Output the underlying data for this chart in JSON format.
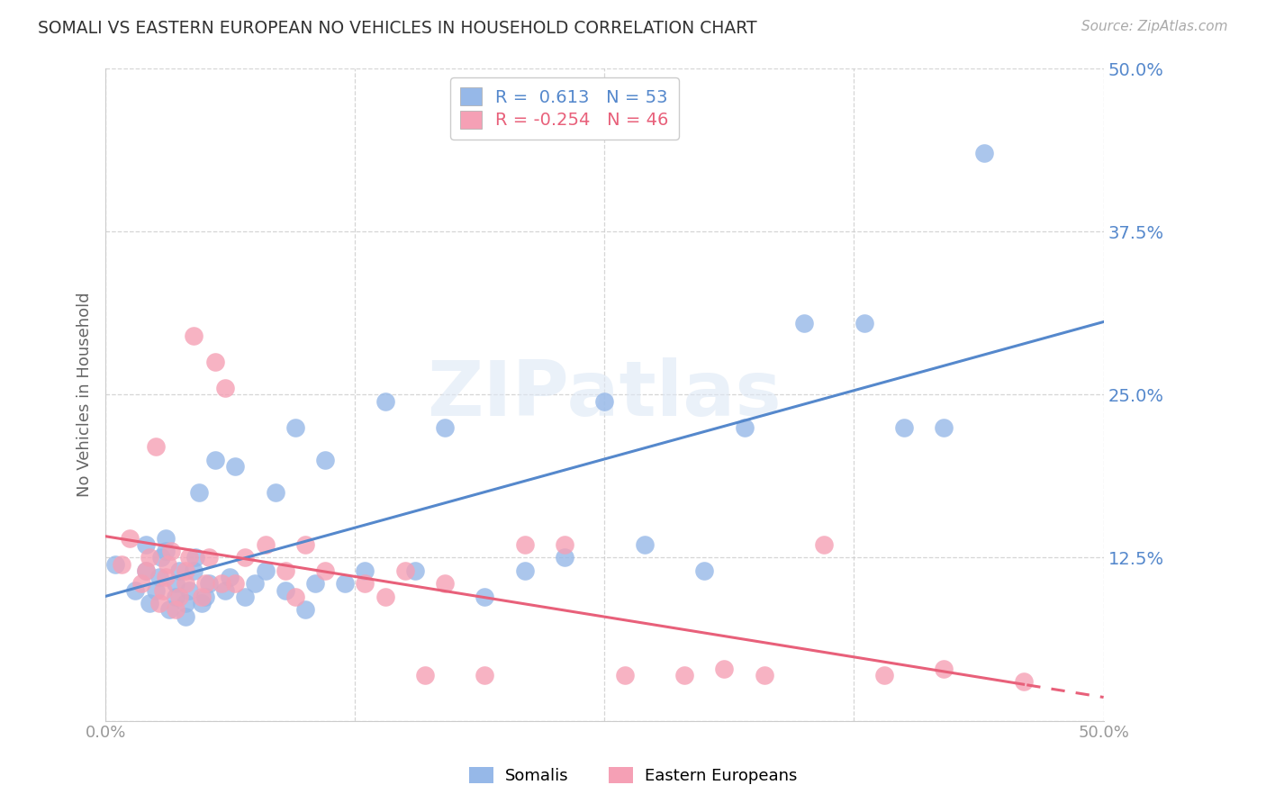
{
  "title": "SOMALI VS EASTERN EUROPEAN NO VEHICLES IN HOUSEHOLD CORRELATION CHART",
  "source": "Source: ZipAtlas.com",
  "ylabel": "No Vehicles in Household",
  "xmin": 0.0,
  "xmax": 0.5,
  "ymin": 0.0,
  "ymax": 0.5,
  "yticks": [
    0.0,
    0.125,
    0.25,
    0.375,
    0.5
  ],
  "ytick_labels": [
    "",
    "12.5%",
    "25.0%",
    "37.5%",
    "50.0%"
  ],
  "xticks": [
    0.0,
    0.125,
    0.25,
    0.375,
    0.5
  ],
  "xtick_labels": [
    "0.0%",
    "",
    "",
    "",
    "50.0%"
  ],
  "somali_R": 0.613,
  "somali_N": 53,
  "eastern_R": -0.254,
  "eastern_N": 46,
  "somali_color": "#96b8e8",
  "eastern_color": "#f5a0b5",
  "somali_line_color": "#5588cc",
  "eastern_line_color": "#e8607a",
  "watermark": "ZIPatlas",
  "legend_label_somali": "Somalis",
  "legend_label_eastern": "Eastern Europeans",
  "somali_x": [
    0.005,
    0.015,
    0.02,
    0.02,
    0.022,
    0.025,
    0.027,
    0.028,
    0.03,
    0.03,
    0.032,
    0.035,
    0.035,
    0.037,
    0.04,
    0.04,
    0.042,
    0.044,
    0.045,
    0.047,
    0.048,
    0.05,
    0.052,
    0.055,
    0.06,
    0.062,
    0.065,
    0.07,
    0.075,
    0.08,
    0.085,
    0.09,
    0.095,
    0.1,
    0.105,
    0.11,
    0.12,
    0.13,
    0.14,
    0.155,
    0.17,
    0.19,
    0.21,
    0.23,
    0.25,
    0.27,
    0.3,
    0.32,
    0.35,
    0.38,
    0.4,
    0.42,
    0.44
  ],
  "somali_y": [
    0.12,
    0.1,
    0.115,
    0.135,
    0.09,
    0.1,
    0.11,
    0.125,
    0.13,
    0.14,
    0.085,
    0.095,
    0.105,
    0.115,
    0.08,
    0.09,
    0.1,
    0.115,
    0.125,
    0.175,
    0.09,
    0.095,
    0.105,
    0.2,
    0.1,
    0.11,
    0.195,
    0.095,
    0.105,
    0.115,
    0.175,
    0.1,
    0.225,
    0.085,
    0.105,
    0.2,
    0.105,
    0.115,
    0.245,
    0.115,
    0.225,
    0.095,
    0.115,
    0.125,
    0.245,
    0.135,
    0.115,
    0.225,
    0.305,
    0.305,
    0.225,
    0.225,
    0.435
  ],
  "eastern_x": [
    0.008,
    0.012,
    0.018,
    0.02,
    0.022,
    0.025,
    0.027,
    0.029,
    0.03,
    0.031,
    0.033,
    0.035,
    0.037,
    0.04,
    0.04,
    0.042,
    0.044,
    0.048,
    0.05,
    0.052,
    0.055,
    0.058,
    0.06,
    0.065,
    0.07,
    0.08,
    0.09,
    0.095,
    0.1,
    0.11,
    0.13,
    0.14,
    0.15,
    0.16,
    0.17,
    0.19,
    0.21,
    0.23,
    0.26,
    0.29,
    0.31,
    0.33,
    0.36,
    0.39,
    0.42,
    0.46
  ],
  "eastern_y": [
    0.12,
    0.14,
    0.105,
    0.115,
    0.125,
    0.21,
    0.09,
    0.1,
    0.11,
    0.12,
    0.13,
    0.085,
    0.095,
    0.105,
    0.115,
    0.125,
    0.295,
    0.095,
    0.105,
    0.125,
    0.275,
    0.105,
    0.255,
    0.105,
    0.125,
    0.135,
    0.115,
    0.095,
    0.135,
    0.115,
    0.105,
    0.095,
    0.115,
    0.035,
    0.105,
    0.035,
    0.135,
    0.135,
    0.035,
    0.035,
    0.04,
    0.035,
    0.135,
    0.035,
    0.04,
    0.03
  ],
  "grid_color": "#cccccc",
  "bg_color": "#ffffff",
  "tick_color": "#5588cc",
  "axis_line_color": "#cccccc"
}
